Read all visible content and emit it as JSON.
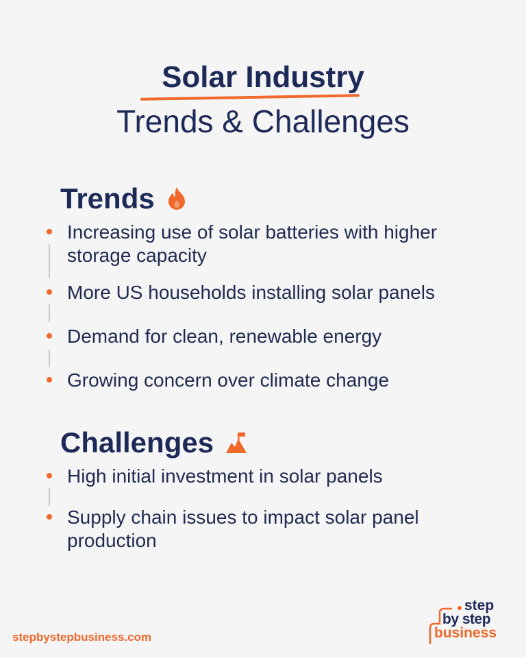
{
  "title": {
    "line1": "Solar Industry",
    "line2": "Trends & Challenges"
  },
  "trends": {
    "heading": "Trends",
    "icon": "fire-icon",
    "items": [
      "Increasing use of solar batteries with higher storage capacity",
      "More US households installing solar panels",
      "Demand for clean, renewable energy",
      "Growing concern over climate change"
    ]
  },
  "challenges": {
    "heading": "Challenges",
    "icon": "mountain-flag-icon",
    "items": [
      "High initial investment in solar panels",
      "Supply chain issues to impact solar panel production"
    ]
  },
  "footer": {
    "url": "stepbystepbusiness.com",
    "logo": {
      "line1": "step",
      "line2": "by step",
      "line3": "business"
    }
  },
  "colors": {
    "navy": "#1d2957",
    "orange": "#f0682a",
    "background": "#f5f5f6"
  }
}
